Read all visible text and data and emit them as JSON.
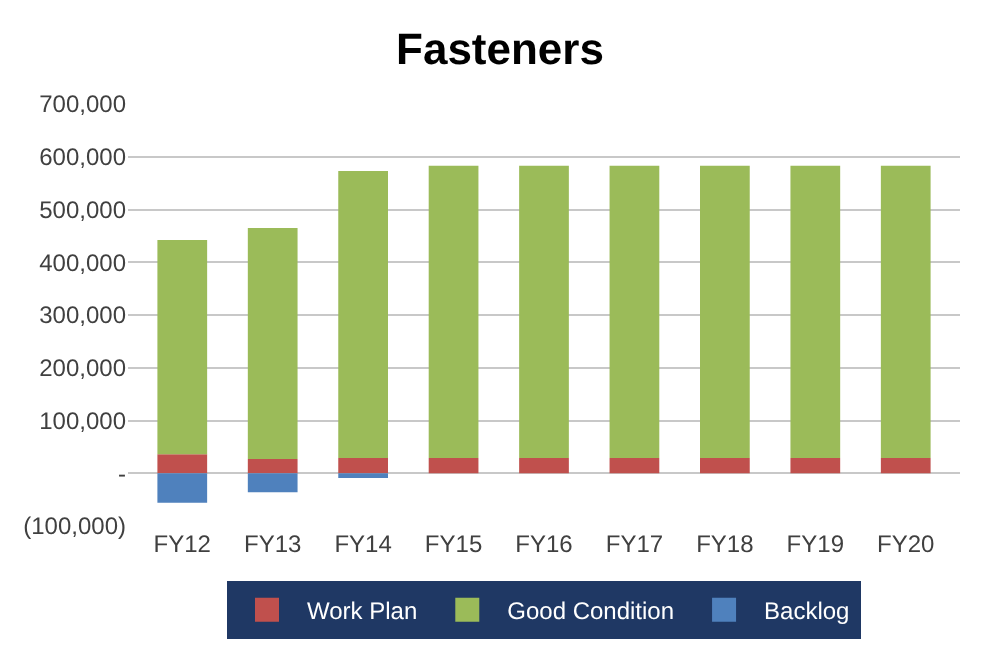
{
  "chart_data": {
    "type": "bar",
    "title": "Fasteners",
    "stacked": true,
    "categories": [
      "FY12",
      "FY13",
      "FY14",
      "FY15",
      "FY16",
      "FY17",
      "FY18",
      "FY19",
      "FY20"
    ],
    "series": [
      {
        "name": "Work Plan",
        "color": "#c0504d",
        "values": [
          36000,
          27000,
          29000,
          29000,
          29000,
          29000,
          29000,
          29000,
          29000
        ]
      },
      {
        "name": "Good Condition",
        "color": "#9bbb59",
        "values": [
          406000,
          438000,
          544000,
          554000,
          554000,
          554000,
          554000,
          554000,
          554000
        ]
      },
      {
        "name": "Backlog",
        "color": "#4f81bd",
        "values": [
          -56000,
          -36000,
          -9000,
          0,
          0,
          0,
          0,
          0,
          0
        ]
      }
    ],
    "ylim": [
      -100000,
      700000
    ],
    "yticks": [
      {
        "value": -100000,
        "label": "(100,000)"
      },
      {
        "value": 0,
        "label": "-"
      },
      {
        "value": 100000,
        "label": "100,000"
      },
      {
        "value": 200000,
        "label": "200,000"
      },
      {
        "value": 300000,
        "label": "300,000"
      },
      {
        "value": 400000,
        "label": "400,000"
      },
      {
        "value": 500000,
        "label": "500,000"
      },
      {
        "value": 600000,
        "label": "600,000"
      },
      {
        "value": 700000,
        "label": "700,000"
      }
    ],
    "grid": "y",
    "legend": "bottom"
  }
}
